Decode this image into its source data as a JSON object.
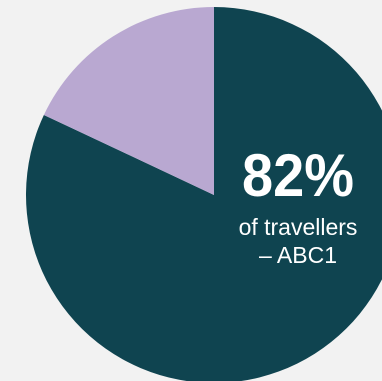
{
  "chart_data": {
    "type": "pie",
    "slices": [
      {
        "label": "ABC1",
        "value": 82,
        "color": "#0f4450"
      },
      {
        "label": "",
        "value": 18,
        "color": "#b9a8d1"
      }
    ],
    "annotation": {
      "value_text": "82%",
      "line1": "of travellers",
      "line2": "– ABC1"
    }
  }
}
